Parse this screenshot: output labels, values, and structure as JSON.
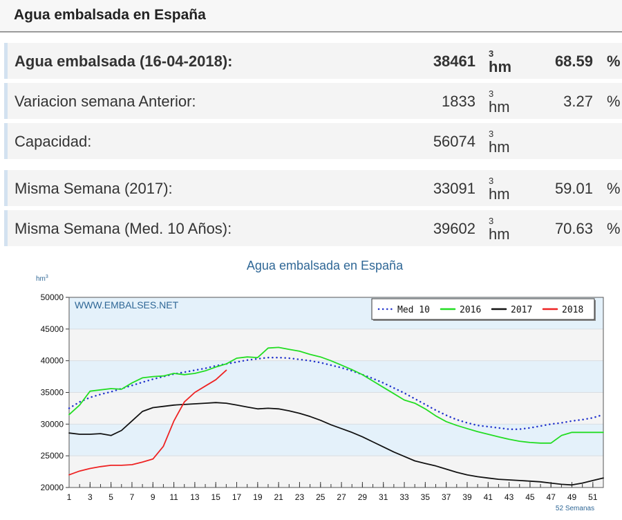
{
  "header": {
    "title": "Agua embalsada en España"
  },
  "table": {
    "rows": [
      {
        "label": "Agua embalsada (16-04-2018):",
        "value": 38461,
        "unit": "hm",
        "unit_sup": "3",
        "percent": 68.59,
        "percent_sign": "%"
      },
      {
        "label": "Variacion semana Anterior:",
        "value": 1833,
        "unit": "hm",
        "unit_sup": "3",
        "percent": 3.27,
        "percent_sign": "%"
      },
      {
        "label": "Capacidad:",
        "value": 56074,
        "unit": "hm",
        "unit_sup": "3"
      },
      {
        "label": "Misma Semana (2017):",
        "value": 33091,
        "unit": "hm",
        "unit_sup": "3",
        "percent": 59.01,
        "percent_sign": "%"
      },
      {
        "label": "Misma Semana (Med. 10 Años):",
        "value": 39602,
        "unit": "hm",
        "unit_sup": "3",
        "percent": 70.63,
        "percent_sign": "%"
      }
    ]
  },
  "chart_data": {
    "type": "line",
    "title": "Agua embalsada en España",
    "y_unit": "hm",
    "y_unit_sup": "3",
    "watermark": "WWW.EMBALSES.NET",
    "x_label": "52 Semanas",
    "x": [
      1,
      2,
      3,
      4,
      5,
      6,
      7,
      8,
      9,
      10,
      11,
      12,
      13,
      14,
      15,
      16,
      17,
      18,
      19,
      20,
      21,
      22,
      23,
      24,
      25,
      26,
      27,
      28,
      29,
      30,
      31,
      32,
      33,
      34,
      35,
      36,
      37,
      38,
      39,
      40,
      41,
      42,
      43,
      44,
      45,
      46,
      47,
      48,
      49,
      50,
      51,
      52
    ],
    "xlim": [
      1,
      52
    ],
    "xticks": [
      1,
      3,
      5,
      7,
      9,
      11,
      13,
      15,
      17,
      19,
      21,
      23,
      25,
      27,
      29,
      31,
      33,
      35,
      37,
      39,
      41,
      43,
      45,
      47,
      49,
      51
    ],
    "ylim": [
      20000,
      50000
    ],
    "yticks": [
      20000,
      25000,
      30000,
      35000,
      40000,
      45000,
      50000
    ],
    "grid": true,
    "legend": "top-right",
    "series": [
      {
        "name": "Med 10",
        "color": "#2233cc",
        "line_style": "dotted",
        "values": [
          32500,
          33500,
          34200,
          34700,
          35100,
          35600,
          36100,
          36600,
          37100,
          37500,
          37900,
          38200,
          38500,
          38800,
          39200,
          39500,
          39800,
          40100,
          40300,
          40500,
          40500,
          40400,
          40200,
          40000,
          39700,
          39300,
          38900,
          38400,
          37800,
          37200,
          36500,
          35700,
          34900,
          34000,
          33100,
          32200,
          31400,
          30700,
          30200,
          29800,
          29600,
          29400,
          29200,
          29200,
          29400,
          29700,
          30000,
          30200,
          30500,
          30700,
          31000,
          31500
        ]
      },
      {
        "name": "2016",
        "color": "#22dd22",
        "line_style": "solid",
        "values": [
          31500,
          33000,
          35200,
          35400,
          35600,
          35500,
          36500,
          37300,
          37500,
          37600,
          38000,
          37800,
          38000,
          38400,
          39000,
          39500,
          40400,
          40600,
          40500,
          42000,
          42100,
          41800,
          41500,
          41000,
          40600,
          40000,
          39300,
          38600,
          37800,
          36800,
          35800,
          34800,
          33800,
          33300,
          32400,
          31300,
          30400,
          29800,
          29300,
          28800,
          28400,
          28000,
          27600,
          27300,
          27100,
          27000,
          27000,
          28200,
          28700,
          28700,
          28700,
          28700
        ]
      },
      {
        "name": "2017",
        "color": "#111111",
        "line_style": "solid",
        "values": [
          28600,
          28400,
          28400,
          28500,
          28200,
          29000,
          30500,
          32000,
          32600,
          32800,
          33000,
          33100,
          33200,
          33300,
          33400,
          33300,
          33000,
          32700,
          32400,
          32500,
          32400,
          32100,
          31700,
          31200,
          30600,
          29900,
          29300,
          28700,
          28000,
          27200,
          26400,
          25600,
          24900,
          24200,
          23800,
          23400,
          22900,
          22400,
          22000,
          21700,
          21500,
          21300,
          21200,
          21100,
          21000,
          20900,
          20700,
          20500,
          20400,
          20700,
          21100,
          21500
        ]
      },
      {
        "name": "2018",
        "color": "#ee2222",
        "line_style": "solid",
        "values": [
          22000,
          22600,
          23000,
          23300,
          23500,
          23500,
          23600,
          24000,
          24500,
          26500,
          30500,
          33500,
          35000,
          36000,
          37000,
          38500,
          null,
          null,
          null,
          null,
          null,
          null,
          null,
          null,
          null,
          null,
          null,
          null,
          null,
          null,
          null,
          null,
          null,
          null,
          null,
          null,
          null,
          null,
          null,
          null,
          null,
          null,
          null,
          null,
          null,
          null,
          null,
          null,
          null,
          null,
          null,
          null
        ]
      }
    ]
  }
}
